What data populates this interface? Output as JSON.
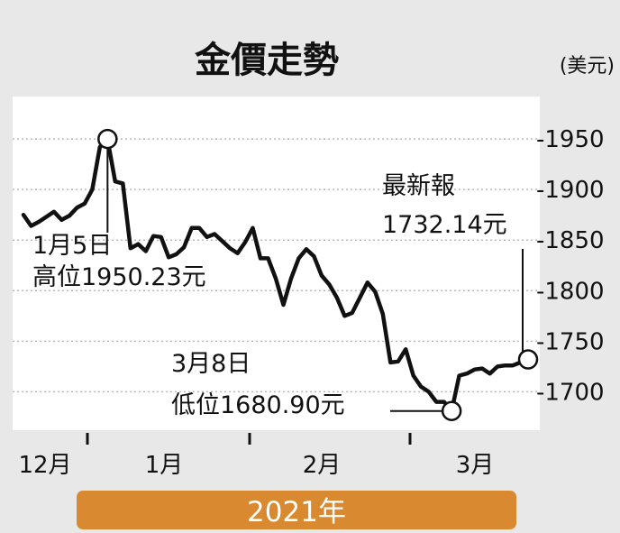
{
  "chart_data": {
    "type": "line",
    "title": "金價走勢",
    "unit_label": "(美元)",
    "y_ticks": [
      "-1950",
      "-1900",
      "-1850",
      "-1800",
      "-1750",
      "-1700"
    ],
    "y_tick_values": [
      1950,
      1900,
      1850,
      1800,
      1750,
      1700
    ],
    "ylim": [
      1662,
      1992
    ],
    "x_tick_labels": [
      "12月",
      "1月",
      "2月",
      "3月"
    ],
    "year_label": "2021年",
    "grid": true,
    "series": [
      {
        "values": [
          1875,
          1864,
          1868,
          1873,
          1878,
          1870,
          1874,
          1882,
          1886,
          1900,
          1942,
          1950,
          1908,
          1906,
          1842,
          1846,
          1839,
          1854,
          1853,
          1833,
          1836,
          1843,
          1862,
          1862,
          1853,
          1856,
          1849,
          1842,
          1837,
          1848,
          1862,
          1832,
          1832,
          1812,
          1786,
          1812,
          1832,
          1841,
          1834,
          1815,
          1806,
          1793,
          1775,
          1778,
          1793,
          1808,
          1799,
          1777,
          1729,
          1730,
          1742,
          1716,
          1705,
          1700,
          1690,
          1690,
          1681,
          1716,
          1718,
          1722,
          1723,
          1718,
          1725,
          1726,
          1726,
          1729,
          1732
        ]
      }
    ],
    "annotations": [
      {
        "lines": [
          "1月5日",
          "高位1950.23元"
        ]
      },
      {
        "lines": [
          "3月8日",
          "低位1680.90元"
        ]
      },
      {
        "lines": [
          "最新報",
          "1732.14元"
        ]
      }
    ]
  }
}
